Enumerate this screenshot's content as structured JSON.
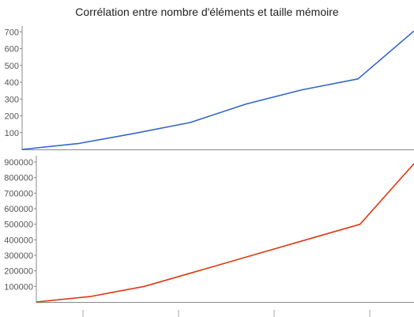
{
  "chart_data": [
    {
      "type": "line",
      "title": "Corrélation entre nombre d'éléments et taille mémoire",
      "xlabel": "",
      "ylabel": "",
      "x": [
        0,
        1,
        2,
        3,
        4,
        5,
        6,
        7
      ],
      "ylim": [
        0,
        720
      ],
      "yticks": [
        100,
        200,
        300,
        400,
        500,
        600,
        700
      ],
      "grid": false,
      "series": [
        {
          "values": [
            0,
            35,
            95,
            160,
            270,
            355,
            420,
            705
          ],
          "color": "#3366cc"
        }
      ]
    },
    {
      "type": "line",
      "xlabel": "",
      "ylabel": "",
      "x": [
        0,
        1,
        2,
        3,
        4,
        5,
        6,
        7
      ],
      "ylim": [
        0,
        900000
      ],
      "yticks": [
        100000,
        200000,
        300000,
        400000,
        500000,
        600000,
        700000,
        800000,
        900000
      ],
      "grid": false,
      "series": [
        {
          "values": [
            0,
            35000,
            100000,
            200000,
            300000,
            400000,
            500000,
            890000
          ],
          "color": "#dc3912"
        }
      ]
    }
  ]
}
